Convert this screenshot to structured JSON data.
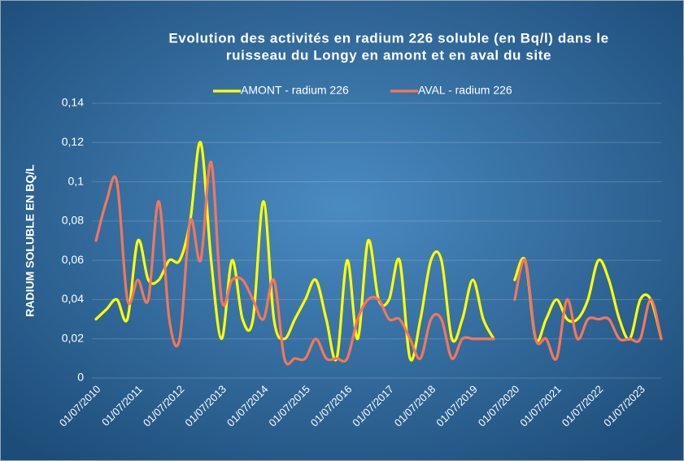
{
  "chart_data": {
    "type": "line",
    "title": [
      "Evolution des activités en radium 226 soluble (en Bq/l) dans le",
      "ruisseau du Longy en amont et en aval du site"
    ],
    "y_label": "RADIUM SOLUBLE EN BQ/L",
    "categories": [
      "01/07/2010",
      null,
      null,
      null,
      "01/07/2011",
      null,
      null,
      null,
      "01/07/2012",
      null,
      null,
      null,
      "01/07/2013",
      null,
      null,
      null,
      "01/07/2014",
      null,
      null,
      null,
      "01/07/2015",
      null,
      null,
      null,
      "01/07/2016",
      null,
      null,
      null,
      "01/07/2017",
      null,
      null,
      null,
      "01/07/2018",
      null,
      null,
      null,
      "01/07/2019",
      null,
      null,
      null,
      "01/07/2020",
      null,
      null,
      null,
      "01/07/2021",
      null,
      null,
      null,
      "01/07/2022",
      null,
      null,
      null,
      "01/07/2023",
      null,
      null
    ],
    "series": [
      {
        "name": "AMONT - radium 226",
        "color": "#ffff00",
        "values": [
          0.03,
          0.035,
          0.04,
          0.03,
          0.07,
          0.05,
          0.05,
          0.06,
          0.06,
          0.08,
          0.12,
          0.06,
          0.02,
          0.06,
          0.03,
          0.03,
          0.09,
          0.03,
          0.02,
          0.03,
          0.04,
          0.05,
          0.03,
          0.01,
          0.06,
          0.02,
          0.07,
          0.04,
          0.04,
          0.06,
          0.01,
          0.03,
          0.06,
          0.06,
          0.02,
          0.03,
          0.05,
          0.03,
          0.02,
          null,
          0.05,
          0.06,
          0.02,
          0.03,
          0.04,
          0.03,
          0.03,
          0.04,
          0.06,
          0.05,
          0.03,
          0.02,
          0.04,
          0.04,
          0.02
        ]
      },
      {
        "name": "AVAL - radium 226",
        "color": "#f4765a",
        "values": [
          0.07,
          0.09,
          0.1,
          0.04,
          0.05,
          0.04,
          0.09,
          0.03,
          0.02,
          0.08,
          0.06,
          0.11,
          0.04,
          0.05,
          0.05,
          0.04,
          0.03,
          0.05,
          0.01,
          0.01,
          0.01,
          0.02,
          0.01,
          0.01,
          0.01,
          0.03,
          0.04,
          0.04,
          0.03,
          0.03,
          0.02,
          0.01,
          0.03,
          0.03,
          0.01,
          0.02,
          0.02,
          0.02,
          0.02,
          null,
          0.04,
          0.06,
          0.02,
          0.02,
          0.01,
          0.04,
          0.02,
          0.03,
          0.03,
          0.03,
          0.02,
          0.02,
          0.02,
          0.04,
          0.02
        ]
      }
    ],
    "ylim": [
      0,
      0.14
    ],
    "yticks": [
      0,
      {
        "value": 0.02,
        "label": "0,02"
      },
      {
        "value": 0.04,
        "label": "0,04"
      },
      {
        "value": 0.06,
        "label": "0,06"
      },
      {
        "value": 0.08,
        "label": "0,08"
      },
      {
        "value": 0.1,
        "label": "0,1"
      },
      {
        "value": 0.12,
        "label": "0,12"
      },
      {
        "value": 0.14,
        "label": "0,14"
      }
    ],
    "grid": true,
    "legend": "top",
    "smooth": true
  }
}
